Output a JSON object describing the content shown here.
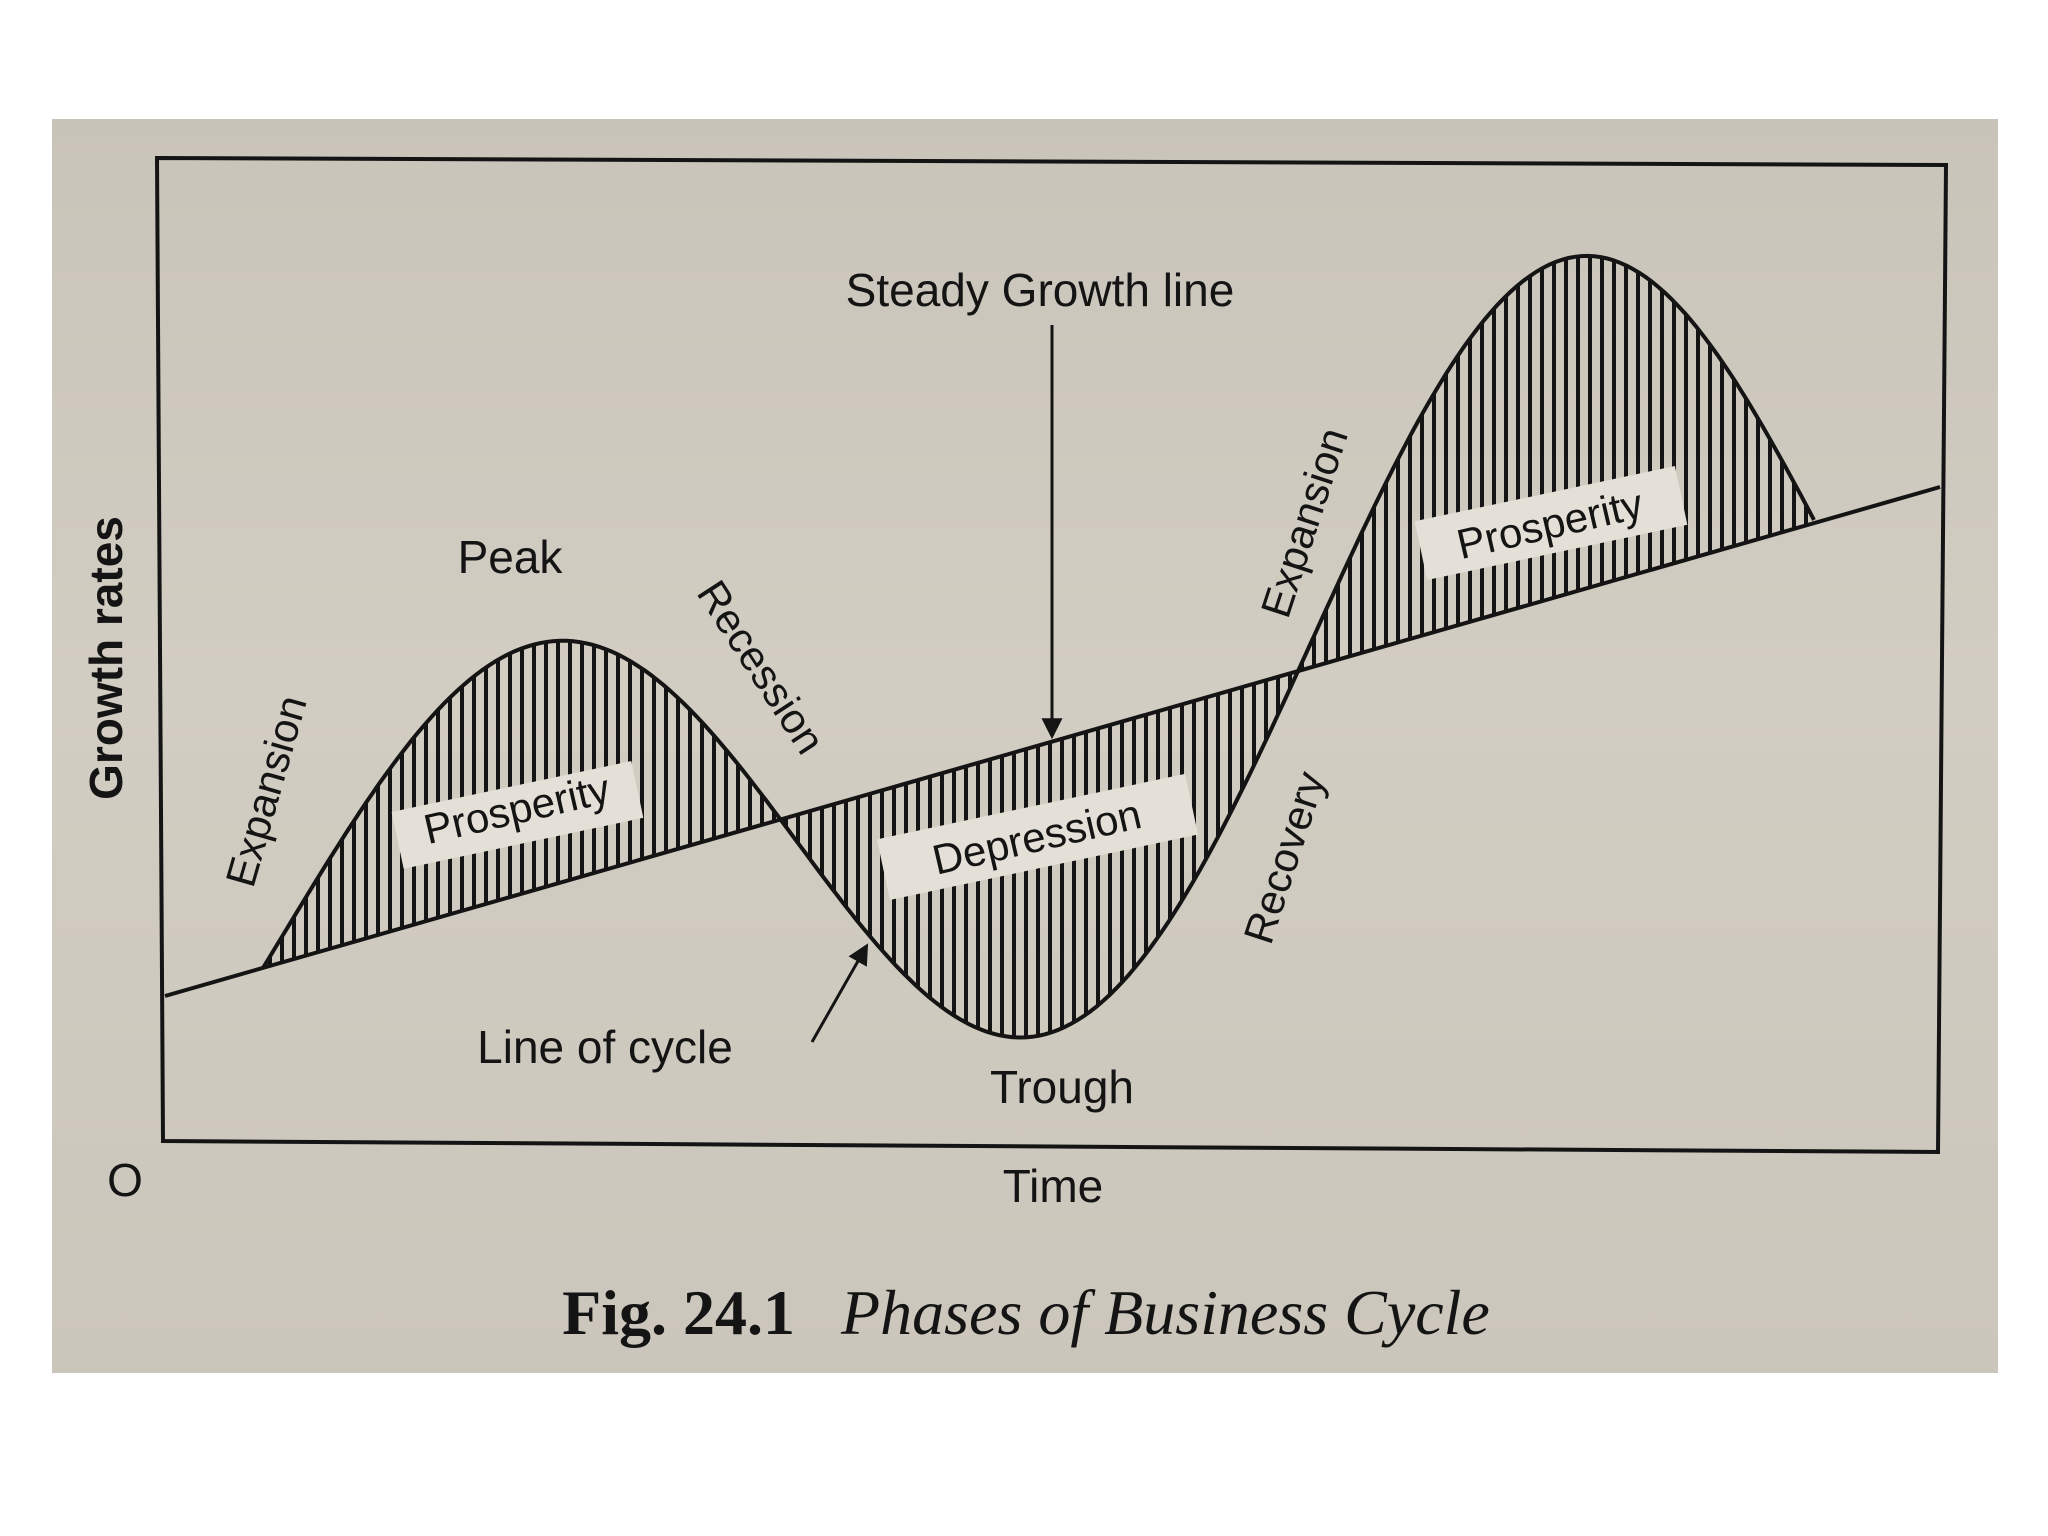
{
  "figure": {
    "caption_number": "Fig. 24.1",
    "caption_title": "Phases of Business Cycle"
  },
  "axes": {
    "y_label": "Growth rates",
    "x_label": "Time",
    "origin_label": "O"
  },
  "labels": {
    "steady_growth_line": "Steady Growth line",
    "line_of_cycle": "Line of cycle",
    "peak": "Peak",
    "trough": "Trough",
    "expansion_1": "Expansion",
    "prosperity_1": "Prosperity",
    "recession": "Recession",
    "depression": "Depression",
    "recovery": "Recovery",
    "expansion_2": "Expansion",
    "prosperity_2": "Prosperity"
  },
  "colors": {
    "ink": "#141414",
    "paper": "#cdc8bd",
    "label_box": "#e4e0d7"
  }
}
